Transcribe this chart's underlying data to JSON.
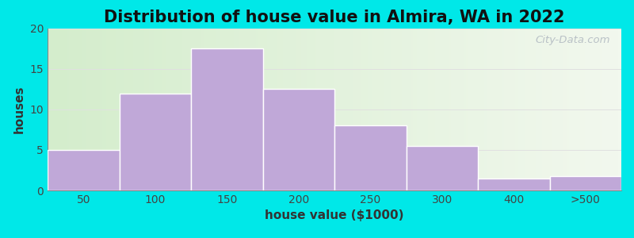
{
  "title": "Distribution of house value in Almira, WA in 2022",
  "xlabel": "house value ($1000)",
  "ylabel": "houses",
  "bar_labels": [
    "50",
    "100",
    "150",
    "200",
    "250",
    "300",
    "400",
    ">500"
  ],
  "bar_heights": [
    5,
    12,
    17.5,
    12.5,
    8,
    5.5,
    1.5,
    1.8
  ],
  "bar_color": "#c0a8d8",
  "bar_edgecolor": "#ffffff",
  "ylim": [
    0,
    20
  ],
  "yticks": [
    0,
    5,
    10,
    15,
    20
  ],
  "background_outer": "#00e8e8",
  "bg_color_left": "#d4edcc",
  "bg_color_right": "#f2f8ee",
  "title_fontsize": 15,
  "axis_label_fontsize": 11,
  "tick_fontsize": 10,
  "watermark": "City-Data.com"
}
